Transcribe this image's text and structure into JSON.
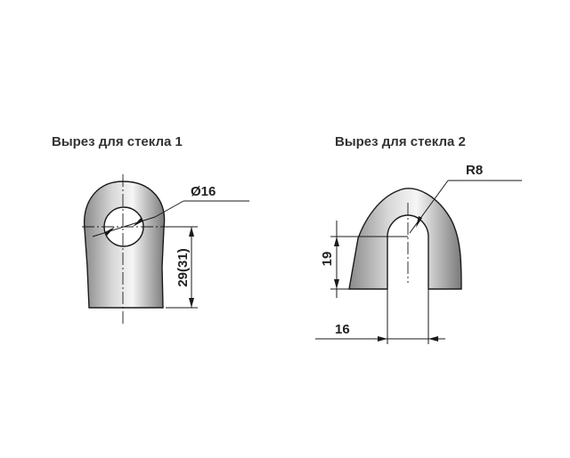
{
  "figure1": {
    "title": "Вырез для стекла  1",
    "diameter_label": "Ø16",
    "height_label": "29(31)"
  },
  "figure2": {
    "title": "Вырез для стекла  2",
    "radius_label": "R8",
    "height_label": "19",
    "width_label": "16"
  },
  "colors": {
    "outline": "#1a1a1a",
    "shade_light": "#f4f4f4",
    "shade_dark": "#7a7a7a"
  }
}
